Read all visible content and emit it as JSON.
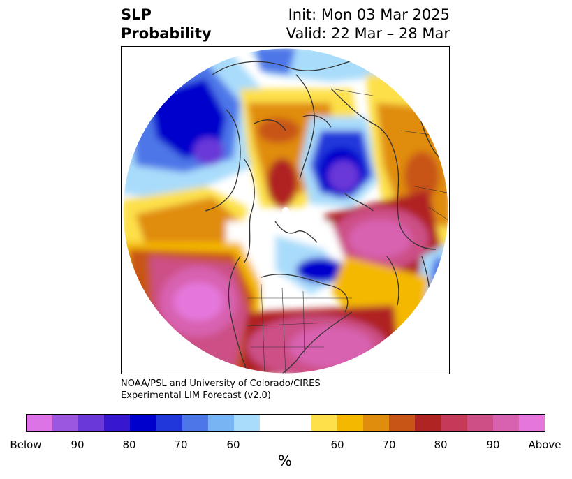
{
  "title": {
    "left_line1": "SLP",
    "left_line2": "Probability",
    "right_line1": "Init: Mon 03 Mar 2025",
    "right_line2": "Valid: 22 Mar – 28 Mar"
  },
  "credit": {
    "line1": "NOAA/PSL and University of Colorado/CIRES",
    "line2": "Experimental LIM Forecast (v2.0)"
  },
  "colorbar": {
    "unit": "%",
    "colors": [
      "#dd74e6",
      "#9b57e0",
      "#6a38d8",
      "#3718d0",
      "#0000cc",
      "#2237da",
      "#4d77e8",
      "#78b4f4",
      "#a9dcfb",
      "#ffffff",
      "#fde04a",
      "#f4b800",
      "#e08c0c",
      "#c85416",
      "#b02424",
      "#c43a58",
      "#cc4f86",
      "#d862b0",
      "#e577dc"
    ],
    "ticks": [
      "Below",
      "90",
      "80",
      "70",
      "60",
      "60",
      "70",
      "80",
      "90",
      "Above"
    ]
  },
  "map_colors": {
    "blue_light": "#a9dcfb",
    "blue_mid": "#4d77e8",
    "blue_dark": "#0000cc",
    "purple": "#6a38d8",
    "yellow": "#fde04a",
    "orange": "#e08c0c",
    "red": "#b02424",
    "magenta": "#d862b0",
    "pink": "#e577dc",
    "coastline": "#333333"
  }
}
